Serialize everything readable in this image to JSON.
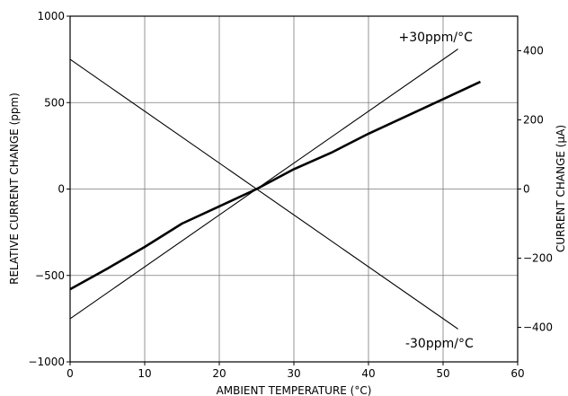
{
  "chart_data": {
    "type": "line",
    "xlabel": "AMBIENT TEMPERATURE (°C)",
    "ylabel": "RELATIVE CURRENT CHANGE (ppm)",
    "y2label": "CURRENT CHANGE (µA)",
    "xlim": [
      0,
      60
    ],
    "ylim": [
      -1000,
      1000
    ],
    "y2lim": [
      -500,
      500
    ],
    "xticks": [
      0,
      10,
      20,
      30,
      40,
      50,
      60
    ],
    "yticks": [
      -1000,
      -500,
      0,
      500,
      1000
    ],
    "y2ticks": [
      -400,
      -200,
      0,
      200,
      400
    ],
    "ytick_labels": [
      "−1000",
      "−500",
      "0",
      "500",
      "1000"
    ],
    "y2tick_labels": [
      "−400",
      "−200",
      "0",
      "200",
      "400"
    ],
    "grid": true,
    "series": [
      {
        "color": "#000000",
        "style": "bold",
        "x": [
          0,
          5,
          10,
          15,
          20,
          25,
          30,
          35,
          40,
          45,
          50,
          55
        ],
        "y": [
          -580,
          -460,
          -335,
          -200,
          -100,
          0,
          115,
          210,
          320,
          420,
          520,
          620
        ]
      },
      {
        "name": "+30ppm/°C",
        "color": "#000000",
        "style": "thin",
        "x": [
          0,
          52
        ],
        "y": [
          -750,
          810
        ]
      },
      {
        "name": "-30ppm/°C",
        "color": "#000000",
        "style": "thin",
        "x": [
          0,
          52
        ],
        "y": [
          750,
          -810
        ]
      }
    ],
    "annotations": [
      {
        "text": "+30ppm/°C",
        "x": 49,
        "y": 880
      },
      {
        "text": "-30ppm/°C",
        "x": 49.5,
        "y": -890
      }
    ]
  }
}
